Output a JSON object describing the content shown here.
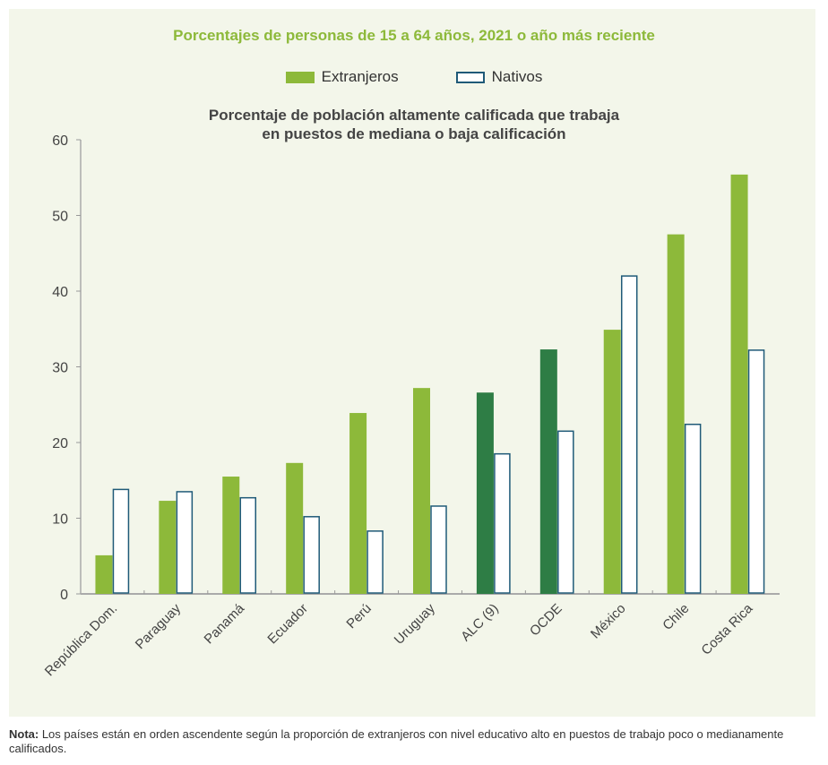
{
  "title": "Porcentajes de personas de 15 a 64 años, 2021 o año más reciente",
  "legend": {
    "extranjeros": "Extranjeros",
    "nativos": "Nativos"
  },
  "note": {
    "label": "Nota:",
    "text": " Los países están en orden ascendente según la proporción de extranjeros con nivel educativo alto en puestos de trabajo poco o medianamente calificados."
  },
  "colors": {
    "extranjeros": "#8db93a",
    "extranjeros_aggregate": "#2e7d45",
    "nativos_stroke": "#1f5a78",
    "background": "#f3f6ea"
  },
  "chart_data": {
    "type": "bar",
    "title": "Porcentaje de población altamente calificada que trabaja en puestos de mediana o baja calificación",
    "title_lines": [
      "Porcentaje de población altamente calificada que trabaja",
      "en puestos de mediana o baja calificación"
    ],
    "categories": [
      "República Dom.",
      "Paraguay",
      "Panamá",
      "Ecuador",
      "Perú",
      "Uruguay",
      "ALC (9)",
      "OCDE",
      "México",
      "Chile",
      "Costa Rica"
    ],
    "aggregate_categories": [
      "ALC (9)",
      "OCDE"
    ],
    "series": [
      {
        "name": "Extranjeros",
        "values": [
          5.1,
          12.3,
          15.5,
          17.3,
          23.9,
          27.2,
          26.6,
          32.3,
          34.9,
          47.5,
          55.4
        ]
      },
      {
        "name": "Nativos",
        "values": [
          13.8,
          13.5,
          12.7,
          10.2,
          8.3,
          11.6,
          18.5,
          21.5,
          42.0,
          22.4,
          32.2
        ]
      }
    ],
    "ylim": [
      0,
      60
    ],
    "yticks": [
      0,
      10,
      20,
      30,
      40,
      50,
      60
    ],
    "grid": false,
    "legend_position": "top"
  }
}
